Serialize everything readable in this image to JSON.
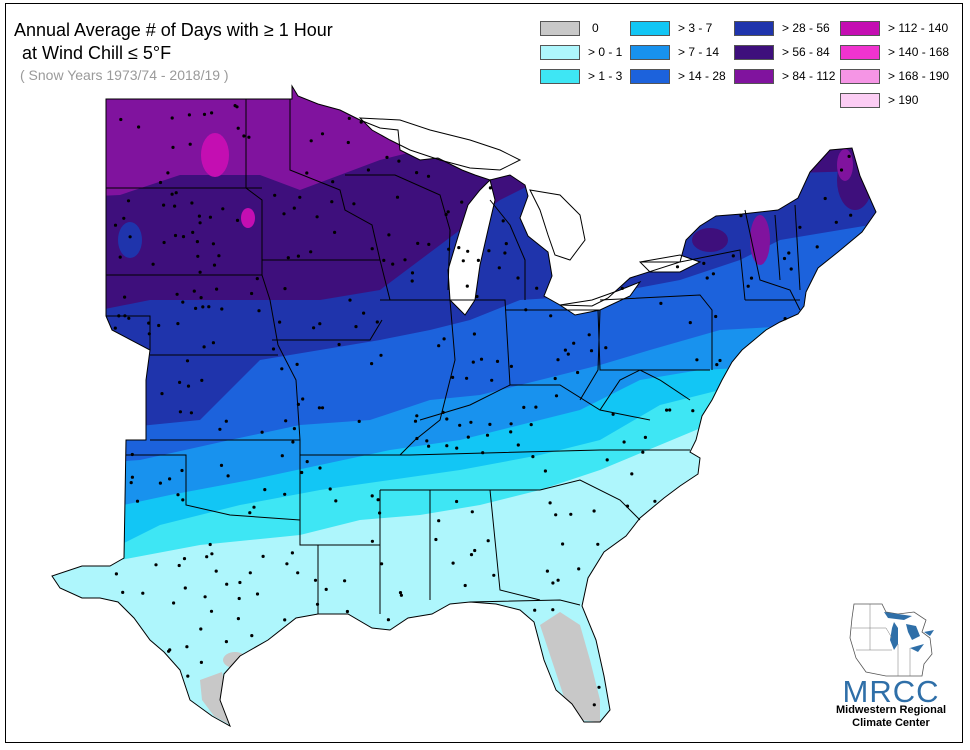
{
  "title": {
    "line1": "Annual Average # of Days with ≥ 1 Hour",
    "line2": "at Wind Chill ≤ 5°F",
    "subtitle": "( Snow Years 1973/74 - 2018/19 )"
  },
  "legend": [
    {
      "label": "0",
      "color": "#c8c8c8"
    },
    {
      "label": "> 0 - 1",
      "color": "#aef6fc"
    },
    {
      "label": "> 1 - 3",
      "color": "#3ee6f4"
    },
    {
      "label": "> 3 - 7",
      "color": "#12c6f5"
    },
    {
      "label": "> 7 - 14",
      "color": "#1892ee"
    },
    {
      "label": "> 14 - 28",
      "color": "#1c62dc"
    },
    {
      "label": "> 28 - 56",
      "color": "#1f34ac"
    },
    {
      "label": "> 56 - 84",
      "color": "#3e0f7c"
    },
    {
      "label": "> 84 - 112",
      "color": "#80139e"
    },
    {
      "label": "> 112 - 140",
      "color": "#c40eb2"
    },
    {
      "label": "> 140 - 168",
      "color": "#f033cf"
    },
    {
      "label": "> 168 - 190",
      "color": "#f595e5"
    },
    {
      "label": "> 190",
      "color": "#fccdf4"
    }
  ],
  "logo": {
    "acronym": "MRCC",
    "name_line1": "Midwestern Regional",
    "name_line2": "Climate Center"
  },
  "colors": {
    "state_border": "#000000",
    "station_dot": "#000000",
    "logo_blue": "#2f6fa8"
  }
}
